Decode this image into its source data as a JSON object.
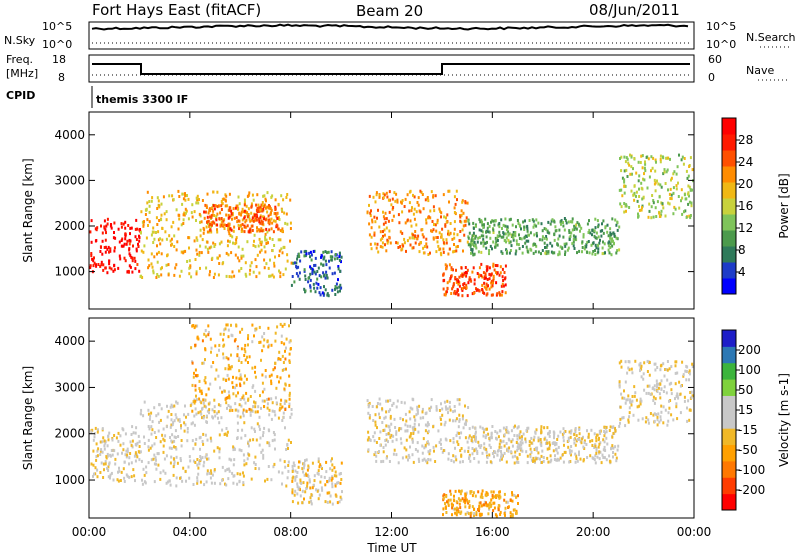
{
  "header": {
    "station": "Fort Hays East (fitACF)",
    "beam": "Beam 20",
    "date": "08/Jun/2011"
  },
  "status_panels": {
    "nsky": {
      "label": "N.Sky",
      "ticks": [
        "10^5",
        "10^0"
      ],
      "right_label": "N.Search",
      "right_ticks": [
        "10^5",
        "10^0"
      ]
    },
    "freq": {
      "label_line1": "Freq.",
      "label_line2": "[MHz]",
      "ticks": [
        "18",
        "8"
      ],
      "right_label": "Nave",
      "right_ticks": [
        "60",
        "0"
      ]
    },
    "cpid": {
      "label": "CPID",
      "value": "themis 3300 IF"
    }
  },
  "chart_data": [
    {
      "type": "heatmap",
      "title": "",
      "ylabel": "Slant Range [km]",
      "xlabel": "",
      "x_ticks": [
        "00:00",
        "04:00",
        "08:00",
        "12:00",
        "16:00",
        "20:00",
        "00:00"
      ],
      "xlim_hours": [
        0,
        24
      ],
      "ylim": [
        180,
        4500
      ],
      "y_ticks": [
        1000,
        2000,
        3000,
        4000
      ],
      "colorbar": {
        "label": "Power [dB]",
        "ticks": [
          "28",
          "24",
          "20",
          "16",
          "12",
          "8",
          "4"
        ],
        "range": [
          0,
          30
        ],
        "colors": [
          "#0000ff",
          "#1e3cc8",
          "#2f7a5a",
          "#4c9a4c",
          "#7fc45a",
          "#c8d23c",
          "#f0b814",
          "#ff8c00",
          "#ff5000",
          "#ff1a00",
          "#ff0000"
        ]
      },
      "bands": [
        {
          "hours": [
            0.0,
            2.0
          ],
          "range_km": [
            1000,
            2200
          ],
          "level": 28
        },
        {
          "hours": [
            2.0,
            8.0
          ],
          "range_km": [
            900,
            2800
          ],
          "level": 18
        },
        {
          "hours": [
            4.5,
            7.5
          ],
          "range_km": [
            1900,
            2500
          ],
          "level": 22
        },
        {
          "hours": [
            8.0,
            10.0
          ],
          "range_km": [
            500,
            1500
          ],
          "level": 6
        },
        {
          "hours": [
            11.0,
            15.0
          ],
          "range_km": [
            1400,
            2800
          ],
          "level": 20
        },
        {
          "hours": [
            14.0,
            16.5
          ],
          "range_km": [
            500,
            1200
          ],
          "level": 24
        },
        {
          "hours": [
            15.0,
            21.0
          ],
          "range_km": [
            1400,
            2200
          ],
          "level": 10
        },
        {
          "hours": [
            21.0,
            24.0
          ],
          "range_km": [
            2200,
            3600
          ],
          "level": 14
        }
      ]
    },
    {
      "type": "heatmap",
      "title": "",
      "ylabel": "Slant Range [km]",
      "xlabel": "Time UT",
      "x_ticks": [
        "00:00",
        "04:00",
        "08:00",
        "12:00",
        "16:00",
        "20:00",
        "00:00"
      ],
      "xlim_hours": [
        0,
        24
      ],
      "ylim": [
        180,
        4500
      ],
      "y_ticks": [
        1000,
        2000,
        3000,
        4000
      ],
      "colorbar": {
        "label": "Velocity [m s-1]",
        "ticks": [
          "200",
          "100",
          "50",
          "15",
          "-15",
          "-50",
          "-100",
          "-200"
        ],
        "range": [
          -250,
          250
        ],
        "colors": [
          "#ff0000",
          "#ff3c00",
          "#ff7800",
          "#ffa000",
          "#f0b828",
          "#c8c8c8",
          "#c8c8c8",
          "#7fd23c",
          "#3cb43c",
          "#2c78b4",
          "#1e1ec8"
        ]
      },
      "bands": [
        {
          "hours": [
            0.0,
            2.0
          ],
          "range_km": [
            1000,
            2200
          ],
          "level": -5
        },
        {
          "hours": [
            2.0,
            8.0
          ],
          "range_km": [
            900,
            2800
          ],
          "level": 0
        },
        {
          "hours": [
            4.0,
            8.0
          ],
          "range_km": [
            2500,
            4400
          ],
          "level": -60
        },
        {
          "hours": [
            8.0,
            10.0
          ],
          "range_km": [
            500,
            1500
          ],
          "level": -30
        },
        {
          "hours": [
            11.0,
            15.0
          ],
          "range_km": [
            1400,
            2800
          ],
          "level": 0
        },
        {
          "hours": [
            14.0,
            17.0
          ],
          "range_km": [
            200,
            800
          ],
          "level": -80
        },
        {
          "hours": [
            15.0,
            21.0
          ],
          "range_km": [
            1400,
            2200
          ],
          "level": 0
        },
        {
          "hours": [
            21.0,
            24.0
          ],
          "range_km": [
            2200,
            3600
          ],
          "level": 0
        }
      ]
    }
  ]
}
